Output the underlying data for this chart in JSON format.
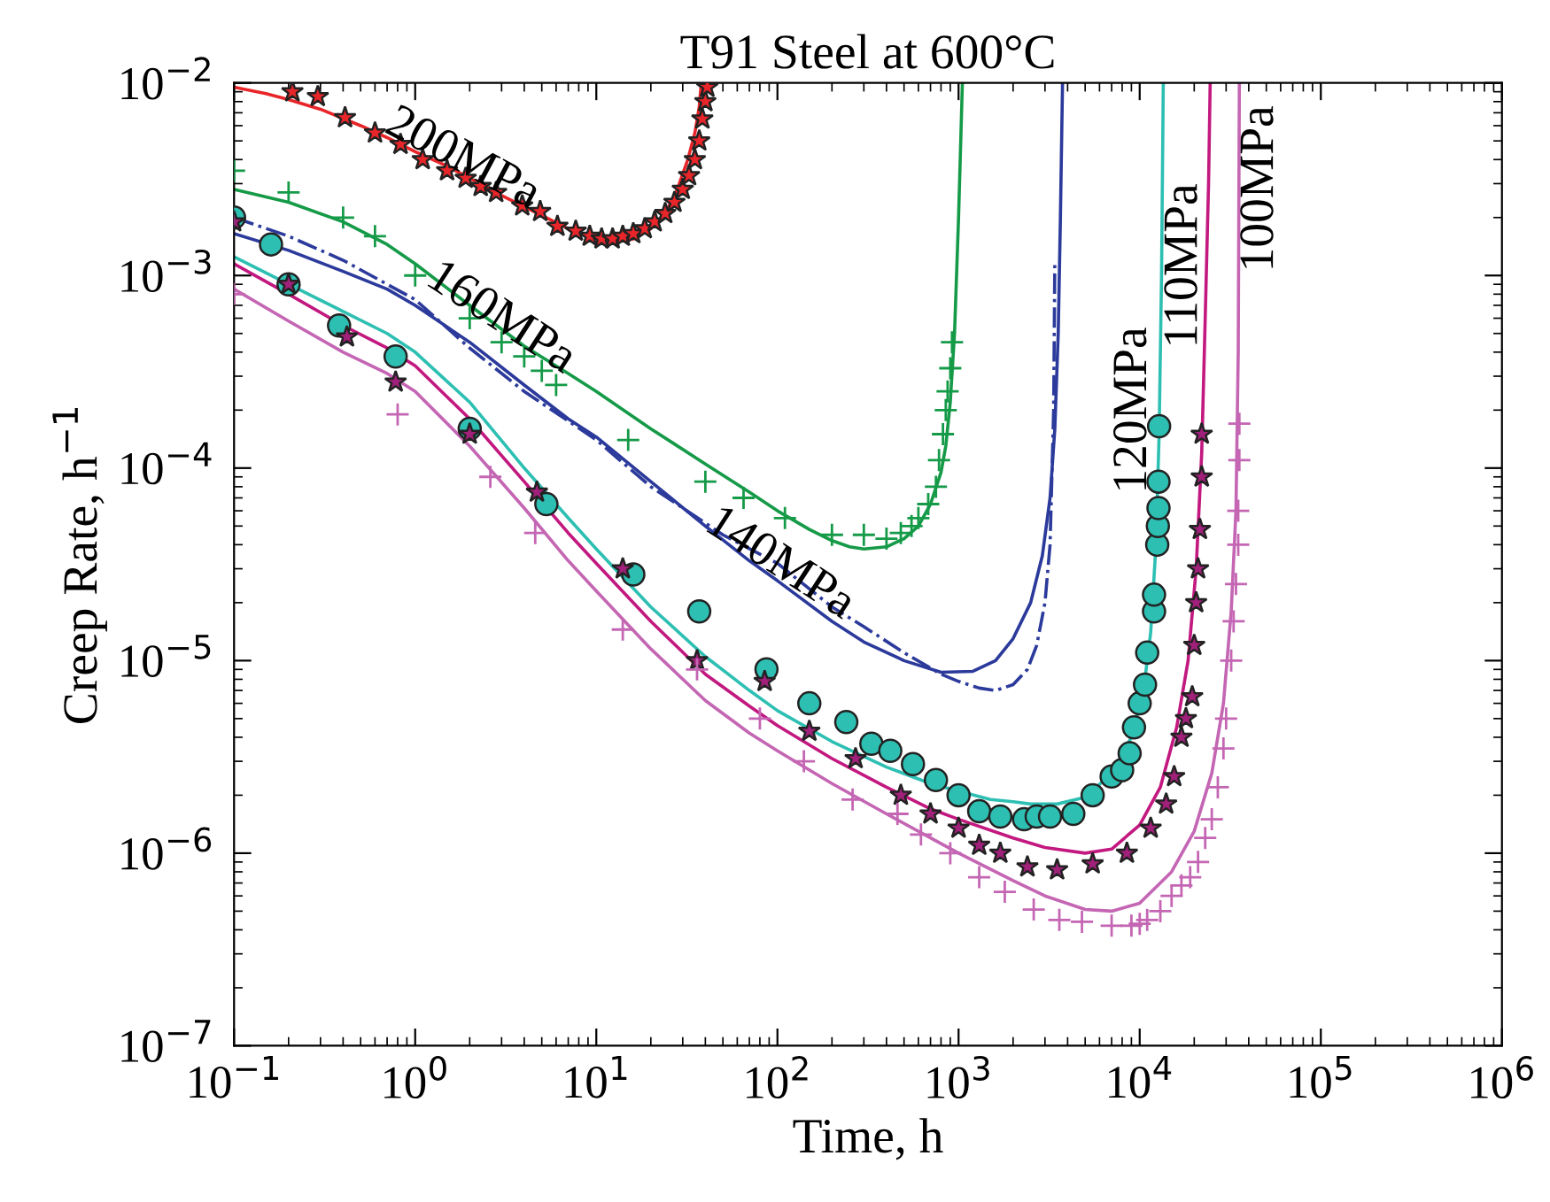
{
  "chart_data": {
    "type": "line",
    "title": "T91 Steel at 600°C",
    "xlabel": "Time, h",
    "ylabel": "Creep Rate, h$^{−1}$",
    "log": "xy",
    "grid": false,
    "legend": false,
    "xlim": [
      0.1,
      1000000
    ],
    "ylim": [
      1e-07,
      0.01
    ],
    "xticks": [
      {
        "value": 0.1,
        "label": "10$^{−1}$"
      },
      {
        "value": 1,
        "label": "10$^{0}$"
      },
      {
        "value": 10,
        "label": "10$^{1}$"
      },
      {
        "value": 100,
        "label": "10$^{2}$"
      },
      {
        "value": 1000,
        "label": "10$^{3}$"
      },
      {
        "value": 10000,
        "label": "10$^{4}$"
      },
      {
        "value": 100000,
        "label": "10$^{5}$"
      },
      {
        "value": 1000000,
        "label": "10$^{6}$"
      }
    ],
    "yticks": [
      {
        "value": 1e-07,
        "label": "10$^{−7}$"
      },
      {
        "value": 1e-06,
        "label": "10$^{−6}$"
      },
      {
        "value": 1e-05,
        "label": "10$^{−5}$"
      },
      {
        "value": 0.0001,
        "label": "10$^{−4}$"
      },
      {
        "value": 0.001,
        "label": "10$^{−3}$"
      },
      {
        "value": 0.01,
        "label": "10$^{−2}$"
      }
    ],
    "series": [
      {
        "name": "200MPa",
        "color": "#e8262a",
        "x": [
          0.1,
          0.15,
          0.2,
          0.3,
          0.5,
          0.7,
          1,
          1.5,
          2,
          3,
          5,
          7,
          10,
          13,
          16,
          20,
          24,
          28,
          32,
          35,
          37,
          38
        ],
        "values": [
          0.0095,
          0.0088,
          0.0082,
          0.0073,
          0.006,
          0.0052,
          0.0044,
          0.0037,
          0.0032,
          0.0026,
          0.00205,
          0.00175,
          0.00155,
          0.0015,
          0.00155,
          0.00175,
          0.0021,
          0.0028,
          0.004,
          0.0055,
          0.0075,
          0.01
        ]
      },
      {
        "type": "scatter",
        "marker": "star",
        "color": "#e8262a",
        "x": [
          0.21,
          0.29,
          0.41,
          0.6,
          0.83,
          1.1,
          1.5,
          1.9,
          2.3,
          2.8,
          3.9,
          4.9,
          6.1,
          7.7,
          9.2,
          10.7,
          12.3,
          14,
          16,
          18.5,
          21,
          24,
          27,
          30,
          32.5,
          35,
          37,
          38.5,
          40,
          41
        ],
        "values": [
          0.009,
          0.0085,
          0.0066,
          0.0055,
          0.0048,
          0.004,
          0.0035,
          0.0032,
          0.0029,
          0.0027,
          0.0023,
          0.00215,
          0.0018,
          0.0017,
          0.0016,
          0.00155,
          0.00155,
          0.0016,
          0.00165,
          0.00175,
          0.0019,
          0.0021,
          0.0024,
          0.0028,
          0.0033,
          0.004,
          0.005,
          0.0065,
          0.008,
          0.0095
        ]
      },
      {
        "name": "160MPa",
        "color": "#159a48",
        "x": [
          0.1,
          0.2,
          0.4,
          0.7,
          1,
          2,
          4,
          7,
          10,
          20,
          40,
          70,
          100,
          150,
          200,
          250,
          300,
          400,
          500,
          600,
          700,
          800,
          850,
          900,
          950,
          1000,
          1050
        ],
        "values": [
          0.0028,
          0.0024,
          0.0019,
          0.00145,
          0.00115,
          0.0007,
          0.00043,
          0.00031,
          0.00025,
          0.00016,
          0.000105,
          7.5e-05,
          6e-05,
          4.8e-05,
          4.2e-05,
          3.9e-05,
          3.8e-05,
          3.9e-05,
          4.3e-05,
          5e-05,
          6.5e-05,
          9.5e-05,
          0.00013,
          0.00022,
          0.0005,
          0.002,
          0.01
        ]
      },
      {
        "type": "scatter",
        "marker": "plus",
        "color": "#159a48",
        "x": [
          0.1,
          0.2,
          0.4,
          0.6,
          1,
          2,
          3,
          4,
          5,
          6,
          15,
          40,
          65,
          110,
          200,
          300,
          400,
          480,
          550,
          600,
          680,
          750,
          780,
          820,
          850,
          870,
          900,
          920
        ],
        "values": [
          0.0035,
          0.0027,
          0.002,
          0.0016,
          0.001,
          0.0006,
          0.00045,
          0.00038,
          0.00032,
          0.00027,
          0.00014,
          8.5e-05,
          7e-05,
          5.5e-05,
          4.5e-05,
          4.5e-05,
          4.3e-05,
          4.6e-05,
          5e-05,
          5.5e-05,
          6.5e-05,
          8e-05,
          0.00011,
          0.00015,
          0.0002,
          0.00025,
          0.00033,
          0.00045
        ]
      },
      {
        "name": "140MPa",
        "color": "#2b3a9b",
        "x": [
          0.1,
          0.2,
          0.4,
          0.7,
          1,
          2,
          4,
          7,
          10,
          20,
          40,
          70,
          100,
          200,
          300,
          500,
          800,
          1200,
          1600,
          2000,
          2500,
          2900,
          3200,
          3400,
          3550,
          3650,
          3750
        ],
        "values": [
          0.00165,
          0.00135,
          0.00105,
          0.00085,
          0.0007,
          0.00045,
          0.00027,
          0.00018,
          0.000145,
          8.5e-05,
          5e-05,
          3.3e-05,
          2.6e-05,
          1.6e-05,
          1.25e-05,
          1e-05,
          8.7e-06,
          8.8e-06,
          1e-05,
          1.3e-05,
          2e-05,
          3.5e-05,
          7e-05,
          0.00016,
          0.0005,
          0.002,
          0.01
        ]
      },
      {
        "line_style": "dashdot",
        "color": "#2b3a9b",
        "x": [
          0.1,
          0.2,
          0.4,
          1,
          2,
          4,
          10,
          20,
          50,
          100,
          200,
          300,
          500,
          800,
          1000,
          1300,
          1600,
          2000,
          2400,
          2700,
          3000,
          3200,
          3350,
          3400
        ],
        "values": [
          0.002,
          0.0016,
          0.0012,
          0.00075,
          0.00042,
          0.00025,
          0.00014,
          8e-05,
          4.5e-05,
          3.2e-05,
          1.9e-05,
          1.5e-05,
          1.1e-05,
          8.5e-06,
          7.8e-06,
          7.2e-06,
          7e-06,
          7.5e-06,
          9e-06,
          1.2e-05,
          2e-05,
          4e-05,
          0.0002,
          0.0012
        ]
      },
      {
        "name": "120MPa",
        "color": "#2ebfb3",
        "x": [
          0.1,
          0.2,
          0.4,
          0.7,
          1,
          2,
          4,
          7,
          10,
          20,
          40,
          70,
          100,
          200,
          400,
          700,
          1000,
          1500,
          2000,
          2500,
          3500,
          5000,
          7000,
          9000,
          10500,
          11500,
          12300,
          12800,
          13200,
          13500
        ],
        "values": [
          0.00125,
          0.0009,
          0.00065,
          0.0005,
          0.0004,
          0.00022,
          0.0001,
          5.5e-05,
          3.8e-05,
          1.9e-05,
          1.05e-05,
          7e-06,
          5.5e-06,
          3.8e-06,
          2.8e-06,
          2.3e-06,
          2.1e-06,
          1.9e-06,
          1.85e-06,
          1.8e-06,
          1.8e-06,
          1.95e-06,
          2.6e-06,
          4e-06,
          7e-06,
          1.4e-05,
          4e-05,
          0.00015,
          0.001,
          0.01
        ]
      },
      {
        "type": "scatter",
        "marker": "circle",
        "color": "#2ebfb3",
        "x": [
          0.1,
          0.16,
          0.2,
          0.38,
          0.78,
          2,
          5.3,
          16,
          37,
          87,
          150,
          240,
          330,
          420,
          560,
          750,
          1000,
          1300,
          1700,
          2300,
          2700,
          3200,
          4300,
          5500,
          7000,
          8000,
          8800,
          9300,
          10000,
          10700,
          11000,
          12000,
          12000,
          12500,
          12600,
          12700,
          12700,
          12800
        ],
        "values": [
          0.002,
          0.00145,
          0.0009,
          0.00055,
          0.00038,
          0.00016,
          6.5e-05,
          2.8e-05,
          1.8e-05,
          9e-06,
          6e-06,
          4.8e-06,
          3.7e-06,
          3.4e-06,
          2.9e-06,
          2.4e-06,
          2e-06,
          1.65e-06,
          1.55e-06,
          1.5e-06,
          1.55e-06,
          1.55e-06,
          1.6e-06,
          2e-06,
          2.5e-06,
          2.7e-06,
          3.3e-06,
          4.5e-06,
          6e-06,
          7.5e-06,
          1.1e-05,
          1.8e-05,
          2.2e-05,
          4e-05,
          5e-05,
          6.2e-05,
          8.5e-05,
          0.000165
        ]
      },
      {
        "name": "110MPa",
        "color": "#c2187f",
        "x": [
          0.1,
          0.2,
          0.4,
          0.7,
          1,
          2,
          4,
          7,
          10,
          20,
          40,
          70,
          100,
          200,
          400,
          700,
          1000,
          2000,
          3000,
          5000,
          7000,
          10000,
          13000,
          16000,
          18500,
          20500,
          22000,
          23000,
          24000,
          24500
        ],
        "values": [
          0.00115,
          0.0008,
          0.00055,
          0.00042,
          0.00034,
          0.00018,
          8.5e-05,
          4.6e-05,
          3.2e-05,
          1.6e-05,
          8.5e-06,
          5.8e-06,
          4.6e-06,
          3.1e-06,
          2.2e-06,
          1.7e-06,
          1.5e-06,
          1.2e-06,
          1.07e-06,
          1e-06,
          1.05e-06,
          1.4e-06,
          2.2e-06,
          4.5e-06,
          1e-05,
          3e-05,
          0.00012,
          0.0006,
          0.003,
          0.01
        ]
      },
      {
        "type": "scatter",
        "marker": "star",
        "color": "#a0207a",
        "x": [
          0.1,
          0.2,
          0.42,
          0.78,
          2,
          4.7,
          14,
          36,
          85,
          150,
          270,
          480,
          700,
          1000,
          1300,
          1700,
          2400,
          3500,
          5500,
          8500,
          11500,
          14000,
          15500,
          17000,
          18000,
          19500,
          20000,
          20500,
          21000,
          21500,
          22000,
          22000
        ],
        "values": [
          0.0019,
          0.0009,
          0.00048,
          0.00028,
          0.00015,
          7.5e-05,
          3e-05,
          1e-05,
          7.8e-06,
          4.3e-06,
          3.1e-06,
          2e-06,
          1.6e-06,
          1.35e-06,
          1.1e-06,
          1e-06,
          8.5e-07,
          8.2e-07,
          8.8e-07,
          1e-06,
          1.35e-06,
          1.8e-06,
          2.5e-06,
          4e-06,
          5e-06,
          6.5e-06,
          1.2e-05,
          2e-05,
          3e-05,
          4.8e-05,
          9e-05,
          0.00015
        ]
      },
      {
        "name": "100MPa",
        "color": "#c466b3",
        "x": [
          0.1,
          0.2,
          0.4,
          0.7,
          1,
          2,
          4,
          7,
          10,
          20,
          40,
          70,
          100,
          200,
          400,
          700,
          1000,
          2000,
          3000,
          5000,
          7000,
          10000,
          15000,
          20000,
          25000,
          29000,
          32000,
          34000,
          35000,
          35500
        ],
        "values": [
          0.00085,
          0.00058,
          0.0004,
          0.00031,
          0.00025,
          0.00013,
          6.2e-05,
          3.3e-05,
          2.3e-05,
          1.15e-05,
          6.2e-06,
          4.2e-06,
          3.4e-06,
          2.3e-06,
          1.6e-06,
          1.2e-06,
          1e-06,
          7.2e-07,
          6e-07,
          5.1e-07,
          5e-07,
          5.5e-07,
          8e-07,
          1.3e-06,
          2.6e-06,
          6e-06,
          1.8e-05,
          6e-05,
          0.0004,
          0.01
        ]
      },
      {
        "type": "scatter",
        "marker": "plus",
        "color": "#c466b3",
        "x": [
          0.1,
          0.8,
          2.6,
          4.6,
          14,
          36,
          80,
          140,
          260,
          460,
          620,
          900,
          1300,
          1800,
          2600,
          3600,
          4800,
          7000,
          9000,
          10000,
          11000,
          13000,
          15000,
          17000,
          19000,
          21000,
          23000,
          25000,
          27000,
          29000,
          30000,
          32000,
          33000,
          34000,
          35000,
          35000,
          35500,
          35500
        ],
        "values": [
          0.0008,
          0.00019,
          9e-05,
          4.6e-05,
          1.45e-05,
          9e-06,
          5e-06,
          3e-06,
          1.9e-06,
          1.6e-06,
          1.25e-06,
          1e-06,
          7.5e-07,
          6.3e-07,
          5.1e-07,
          4.5e-07,
          4.4e-07,
          4.2e-07,
          4.2e-07,
          4.3e-07,
          4.5e-07,
          5e-07,
          6e-07,
          6.8e-07,
          7.5e-07,
          9e-07,
          1.2e-06,
          1.5e-06,
          2.2e-06,
          3.5e-06,
          5e-06,
          1e-05,
          1.6e-05,
          2.5e-05,
          4e-05,
          6e-05,
          0.00011,
          0.00017
        ]
      }
    ]
  }
}
